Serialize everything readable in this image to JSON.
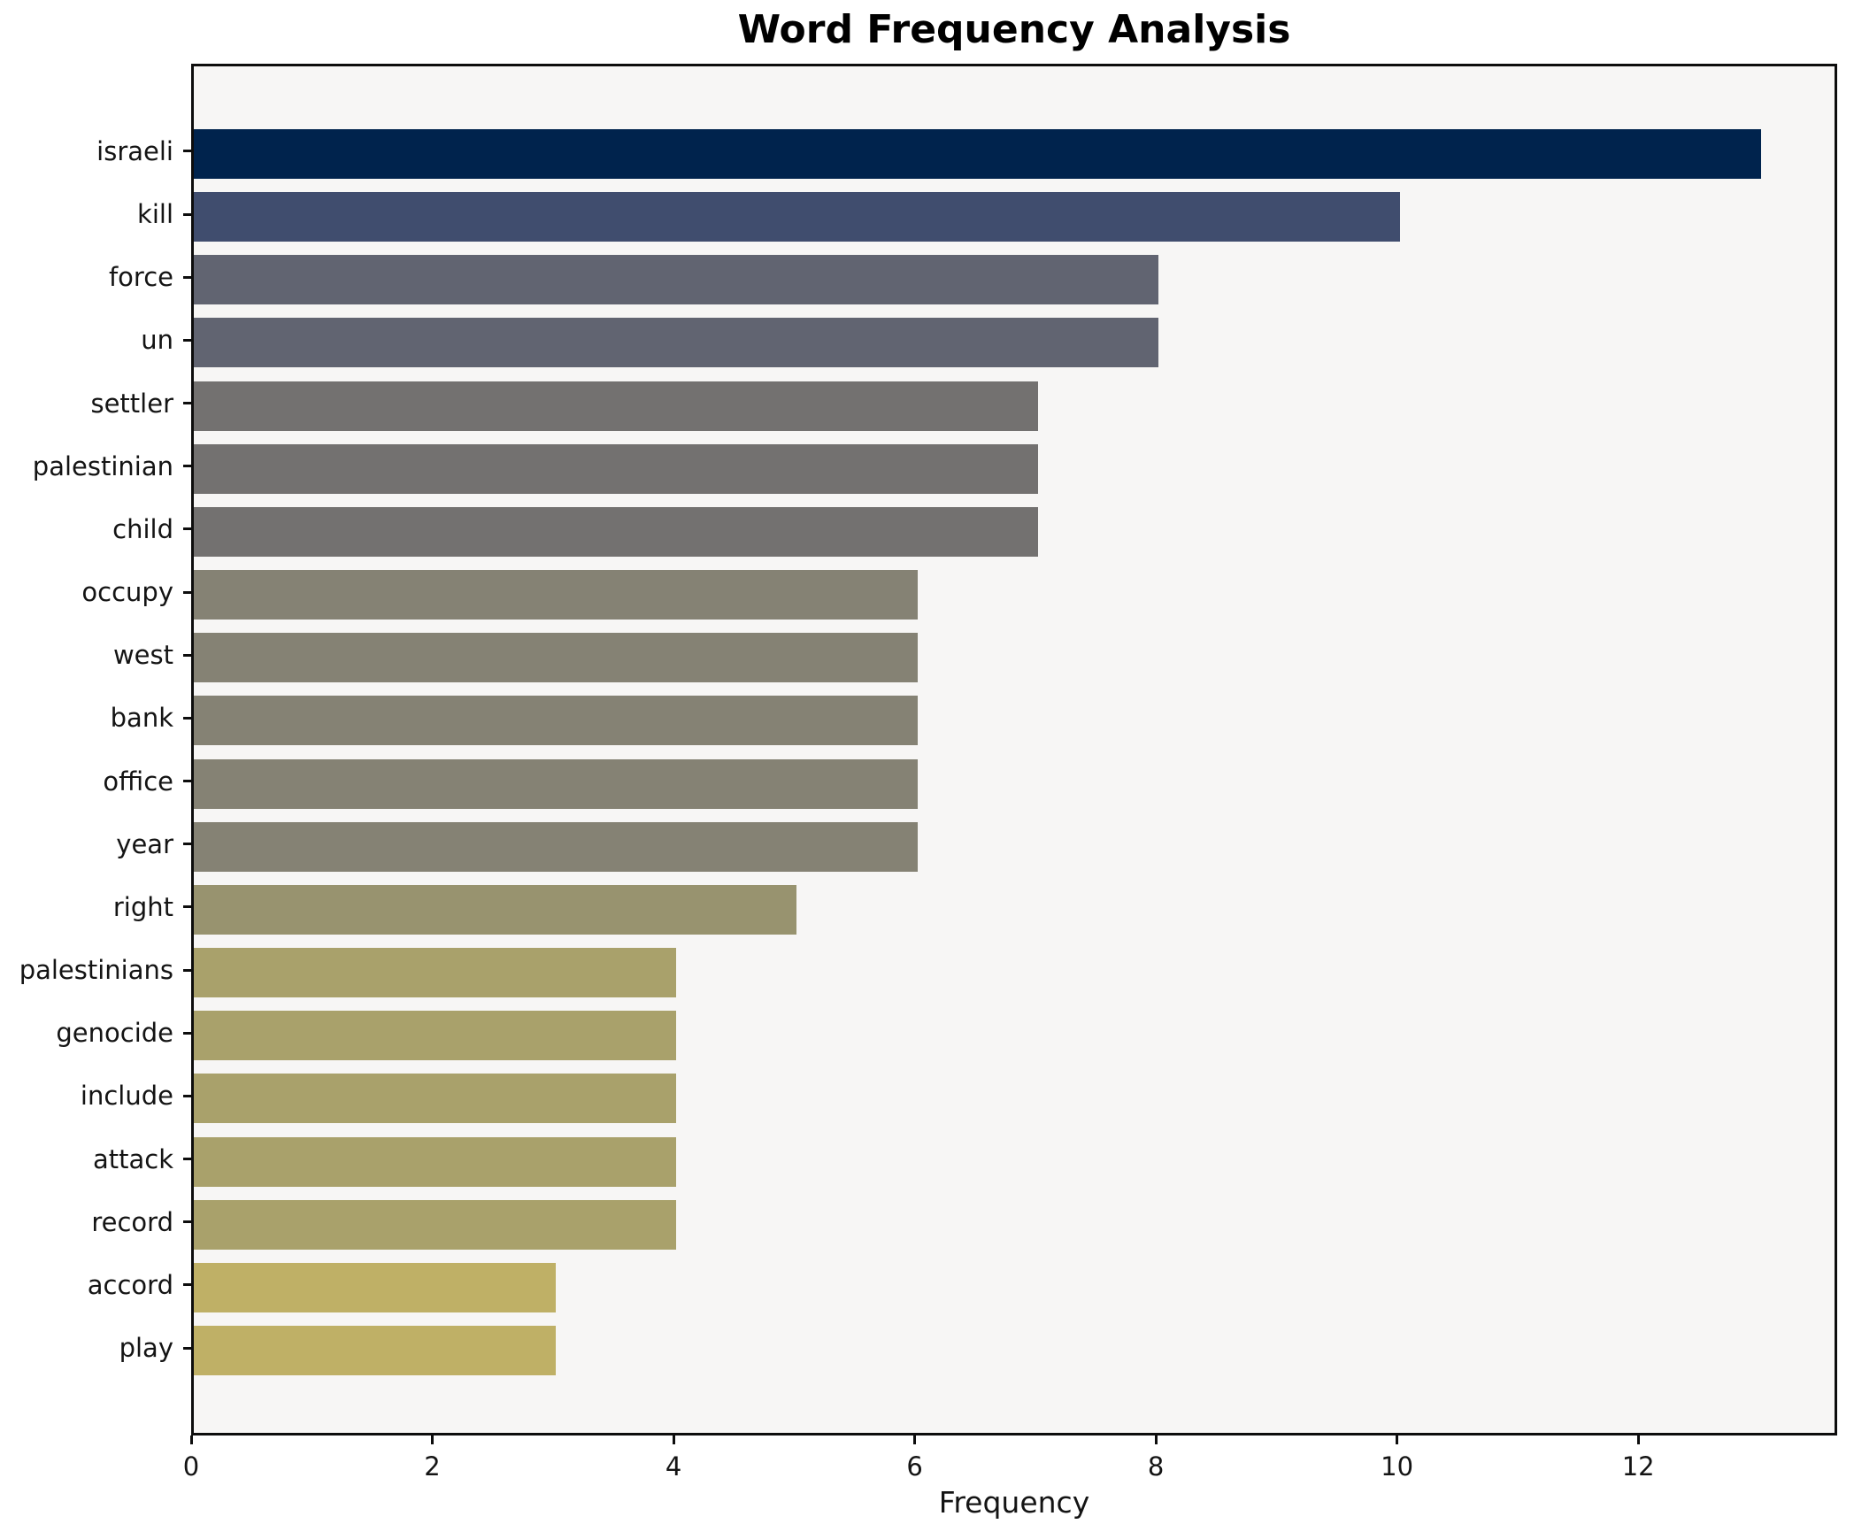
{
  "chart_data": {
    "type": "bar",
    "orientation": "horizontal",
    "title": "Word Frequency Analysis",
    "xlabel": "Frequency",
    "ylabel": "",
    "categories": [
      "israeli",
      "kill",
      "force",
      "un",
      "settler",
      "palestinian",
      "child",
      "occupy",
      "west",
      "bank",
      "office",
      "year",
      "right",
      "palestinians",
      "genocide",
      "include",
      "attack",
      "record",
      "accord",
      "play"
    ],
    "values": [
      13,
      10,
      8,
      8,
      7,
      7,
      7,
      6,
      6,
      6,
      6,
      6,
      5,
      4,
      4,
      4,
      4,
      4,
      3,
      3
    ],
    "bar_colors": [
      "#00234d",
      "#404d6e",
      "#616471",
      "#616471",
      "#737170",
      "#737170",
      "#737170",
      "#858274",
      "#858274",
      "#858274",
      "#858274",
      "#858274",
      "#98936f",
      "#a9a16b",
      "#a9a16b",
      "#a9a16b",
      "#a9a16b",
      "#a9a16b",
      "#bfb066",
      "#bfb066"
    ],
    "xlim": [
      0,
      13.65
    ],
    "xticks": [
      0,
      2,
      4,
      6,
      8,
      10,
      12
    ],
    "grid": false,
    "legend": null,
    "plot_background": "#f7f6f5",
    "figure_background": "#ffffff",
    "spine_color": "#0d0d0d",
    "text_color": "#141414"
  }
}
